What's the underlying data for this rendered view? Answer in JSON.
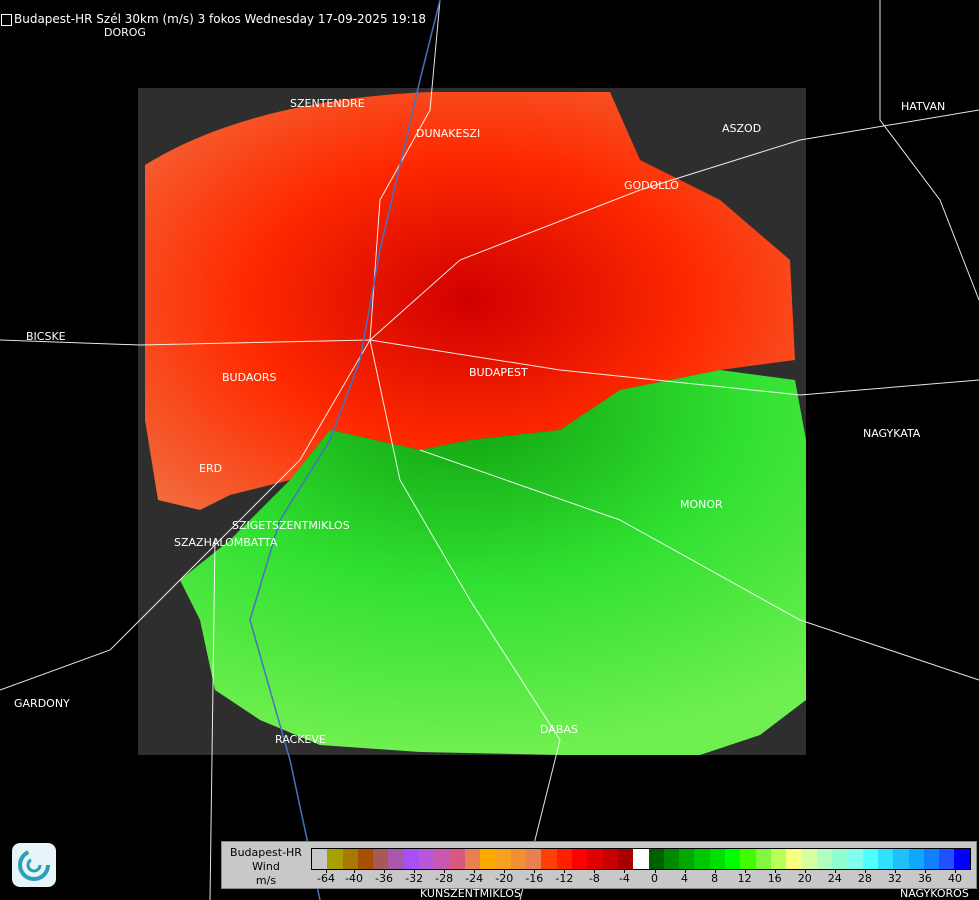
{
  "title": "Budapest-HR Szél 30km (m/s) 3 fokos Wednesday 17-09-2025 19:18",
  "cities": [
    {
      "name": "DOROG"
    },
    {
      "name": "SZENTENDRE"
    },
    {
      "name": "DUNAKESZI"
    },
    {
      "name": "ASZOD"
    },
    {
      "name": "HATVAN"
    },
    {
      "name": "GODOLLO"
    },
    {
      "name": "BICSKE"
    },
    {
      "name": "BUDAORS"
    },
    {
      "name": "BUDAPEST"
    },
    {
      "name": "NAGYKATA"
    },
    {
      "name": "ERD"
    },
    {
      "name": "MONOR"
    },
    {
      "name": "SZIGETSZENTMIKLOS"
    },
    {
      "name": "SZAZHALOMBATTA"
    },
    {
      "name": "GARDONY"
    },
    {
      "name": "RACKEVE"
    },
    {
      "name": "DABAS"
    },
    {
      "name": "KUNSZENTMIKLOS"
    },
    {
      "name": "NAGYKOROS"
    }
  ],
  "legend": {
    "station": "Budapest-HR",
    "quantity": "Wind",
    "unit": "m/s",
    "colors": [
      "#c8c8c8",
      "#a8a000",
      "#a87800",
      "#a85000",
      "#a85858",
      "#a858a8",
      "#a850f8",
      "#b858d8",
      "#c858b0",
      "#d85880",
      "#e88050",
      "#ffa800",
      "#f8a020",
      "#f09030",
      "#e88050",
      "#ff4000",
      "#ff2000",
      "#ff0000",
      "#e00000",
      "#c80000",
      "#a80000",
      "#ffffff",
      "#006000",
      "#008800",
      "#00a800",
      "#00c800",
      "#00e000",
      "#00ff00",
      "#40ff00",
      "#80f840",
      "#b8ff58",
      "#f8ff80",
      "#d8ffa0",
      "#b0ffc0",
      "#90ffd0",
      "#80fff0",
      "#50ffff",
      "#30e0ff",
      "#20c0ff",
      "#10a8ff",
      "#1080ff",
      "#2050ff",
      "#0000ff"
    ],
    "ticks": [
      "-64",
      "-40",
      "-36",
      "-32",
      "-28",
      "-24",
      "-20",
      "-16",
      "-12",
      "-8",
      "-4",
      "0",
      "4",
      "8",
      "12",
      "16",
      "20",
      "24",
      "28",
      "32",
      "36",
      "40"
    ]
  },
  "colors": {
    "approaching": "#ff2000",
    "receding": "#20d020",
    "no_data": "#2e2e2e"
  }
}
